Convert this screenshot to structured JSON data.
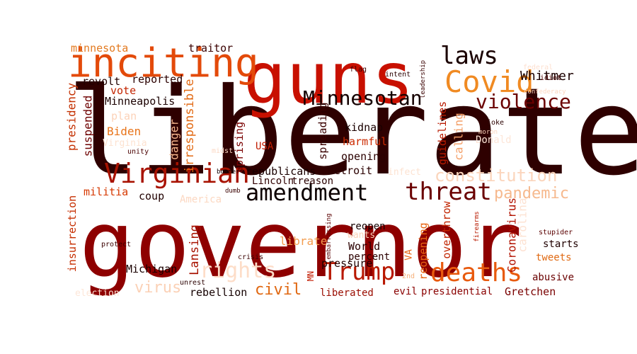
{
  "words": [
    {
      "text": "liberate",
      "color": "#2e0000"
    },
    {
      "text": "governor",
      "color": "#8e0000"
    },
    {
      "text": "guns",
      "color": "#c81000"
    },
    {
      "text": "inciting",
      "color": "#e34a0a"
    },
    {
      "text": "Covid",
      "color": "#f08a22"
    },
    {
      "text": "laws",
      "color": "#1a0000"
    },
    {
      "text": "Whitmer",
      "color": "#1a0000"
    },
    {
      "text": "Minnesotan",
      "color": "#140000"
    },
    {
      "text": "violence",
      "color": "#6a0000"
    },
    {
      "text": "Virginian",
      "color": "#a81200"
    },
    {
      "text": "amendment",
      "color": "#0d0000"
    },
    {
      "text": "threat",
      "color": "#6a0000"
    },
    {
      "text": "constitution",
      "color": "#fbd5bc"
    },
    {
      "text": "pandemic",
      "color": "#f6b98e"
    },
    {
      "text": "rights",
      "color": "#fdddc8"
    },
    {
      "text": "Trump",
      "color": "#b81800"
    },
    {
      "text": "deaths",
      "color": "#e85a0e"
    },
    {
      "text": "virus",
      "color": "#fbd1b6"
    },
    {
      "text": "civil",
      "color": "#e06812"
    },
    {
      "text": "minnesota",
      "color": "#e37a20"
    },
    {
      "text": "traitor",
      "color": "#3a0000"
    },
    {
      "text": "revolt",
      "color": "#200000"
    },
    {
      "text": "reported",
      "color": "#2a0000"
    },
    {
      "text": "vote",
      "color": "#c22400"
    },
    {
      "text": "presidency",
      "color": "#c43000"
    },
    {
      "text": "Minneapolis",
      "color": "#1a0000"
    },
    {
      "text": "plan",
      "color": "#fcd2b8"
    },
    {
      "text": "Biden",
      "color": "#e8741a"
    },
    {
      "text": "suspended",
      "color": "#6e0000"
    },
    {
      "text": "Virginia",
      "color": "#fde2d0"
    },
    {
      "text": "unity",
      "color": "#4a0000"
    },
    {
      "text": "danger",
      "color": "#f2b38a"
    },
    {
      "text": "irresponsible",
      "color": "#e26a14"
    },
    {
      "text": "midst",
      "color": "#fbd8c4"
    },
    {
      "text": "USA",
      "color": "#c11d00"
    },
    {
      "text": "uprising",
      "color": "#7a0000"
    },
    {
      "text": "spreading",
      "color": "#3a0000"
    },
    {
      "text": "kidnap",
      "color": "#1a0000"
    },
    {
      "text": "harmful",
      "color": "#cc2a00"
    },
    {
      "text": "opening",
      "color": "#2a0000"
    },
    {
      "text": "guidelines",
      "color": "#b81a00"
    },
    {
      "text": "calling",
      "color": "#f4a06a"
    },
    {
      "text": "Donald",
      "color": "#fde6d8"
    },
    {
      "text": "republicans",
      "color": "#1a0000"
    },
    {
      "text": "Detroit",
      "color": "#2a0000"
    },
    {
      "text": "infect",
      "color": "#fde3d2"
    },
    {
      "text": "Lincoln",
      "color": "#300000"
    },
    {
      "text": "treason",
      "color": "#2a0000"
    },
    {
      "text": "boomer",
      "color": "#120000"
    },
    {
      "text": "dumb",
      "color": "#3a0000"
    },
    {
      "text": "militia",
      "color": "#d63800"
    },
    {
      "text": "coup",
      "color": "#200000"
    },
    {
      "text": "America",
      "color": "#fcd8c2"
    },
    {
      "text": "insurrection",
      "color": "#c62e00"
    },
    {
      "text": "Lansing",
      "color": "#a81200"
    },
    {
      "text": "Michigan",
      "color": "#1a0000"
    },
    {
      "text": "protect",
      "color": "#3a0000"
    },
    {
      "text": "crisis",
      "color": "#3a0000"
    },
    {
      "text": "unrest",
      "color": "#2a0000"
    },
    {
      "text": "election",
      "color": "#fde6d8"
    },
    {
      "text": "rebellion",
      "color": "#140000"
    },
    {
      "text": "MN",
      "color": "#c21a00"
    },
    {
      "text": "embarrassing",
      "color": "#5a0000"
    },
    {
      "text": "reopen",
      "color": "#140000"
    },
    {
      "text": "wants",
      "color": "#fbd3bb"
    },
    {
      "text": "librate",
      "color": "#f39c4e"
    },
    {
      "text": "World",
      "color": "#2a0000"
    },
    {
      "text": "percent",
      "color": "#2a0000"
    },
    {
      "text": "pressure",
      "color": "#200000"
    },
    {
      "text": "VA",
      "color": "#e76614"
    },
    {
      "text": "reopening",
      "color": "#e76614"
    },
    {
      "text": "2nd",
      "color": "#f6b07a"
    },
    {
      "text": "liberated",
      "color": "#9a0c00"
    },
    {
      "text": "evil",
      "color": "#8a0000"
    },
    {
      "text": "presidential",
      "color": "#8a0000"
    },
    {
      "text": "overthrow",
      "color": "#c12400"
    },
    {
      "text": "Coronavirus",
      "color": "#b21200"
    },
    {
      "text": "firearms",
      "color": "#b81a00"
    },
    {
      "text": "carolina",
      "color": "#fde2d2"
    },
    {
      "text": "stupider",
      "color": "#5a0000"
    },
    {
      "text": "starts",
      "color": "#200000"
    },
    {
      "text": "tweets",
      "color": "#e06a14"
    },
    {
      "text": "abusive",
      "color": "#6a0000"
    },
    {
      "text": "Gretchen",
      "color": "#7a0000"
    },
    {
      "text": "flag",
      "color": "#3a0000"
    },
    {
      "text": "intent",
      "color": "#2a0000"
    },
    {
      "text": "leadership",
      "color": "#3a0000"
    },
    {
      "text": "federal",
      "color": "#fde0d0"
    },
    {
      "text": "idiot",
      "color": "#4a0000"
    },
    {
      "text": "confederacy",
      "color": "#fcd6c0"
    },
    {
      "text": "moron",
      "color": "#fbd4bc"
    },
    {
      "text": "joke",
      "color": "#2a0000"
    }
  ]
}
